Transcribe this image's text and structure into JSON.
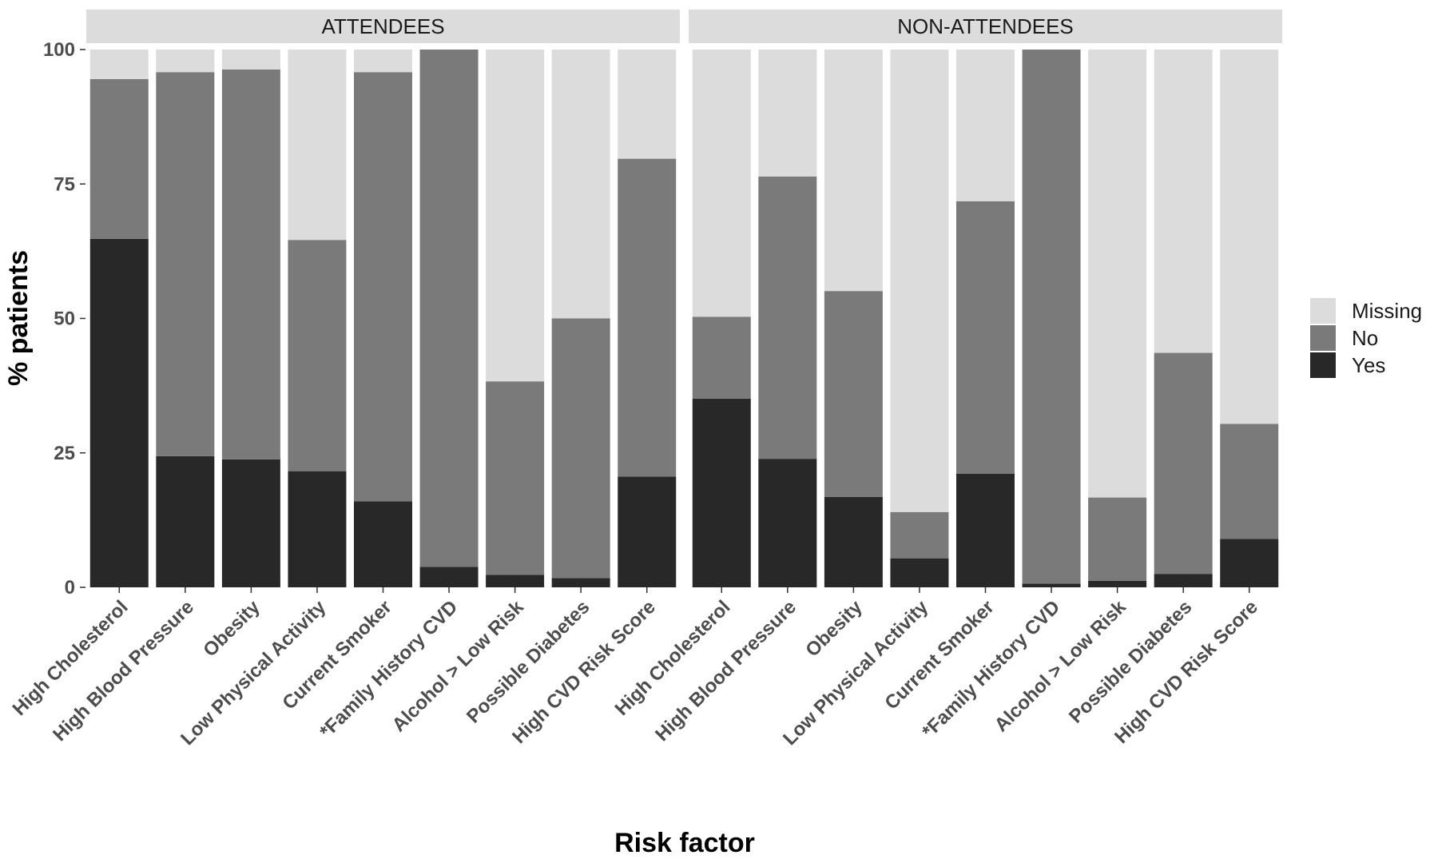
{
  "chart_data": {
    "type": "bar",
    "stacked": true,
    "xlabel": "Risk factor",
    "ylabel": "% patients",
    "ylim": [
      0,
      100
    ],
    "yticks": [
      0,
      25,
      50,
      75,
      100
    ],
    "categories": [
      "High Cholesterol",
      "High Blood Pressure",
      "Obesity",
      "Low Physical Activity",
      "Current Smoker",
      "*Family History CVD",
      "Alcohol > Low Risk",
      "Possible Diabetes",
      "High CVD Risk Score"
    ],
    "legend": {
      "position": "right",
      "entries": [
        "Missing",
        "No",
        "Yes"
      ]
    },
    "colors": {
      "Yes": "#282828",
      "No": "#7a7a7a",
      "Missing": "#dcdcdc",
      "strip": "#dcdcdc"
    },
    "panels": [
      {
        "name": "ATTENDEES",
        "series": [
          {
            "name": "Yes",
            "values": [
              64.8,
              24.4,
              23.8,
              21.6,
              16.0,
              3.8,
              2.3,
              1.7,
              20.6
            ]
          },
          {
            "name": "No",
            "values": [
              29.7,
              71.4,
              72.5,
              43.0,
              79.8,
              96.2,
              36.0,
              48.3,
              59.1
            ]
          },
          {
            "name": "Missing",
            "values": [
              5.5,
              4.2,
              3.7,
              35.4,
              4.2,
              0.0,
              61.7,
              50.0,
              20.3
            ]
          }
        ]
      },
      {
        "name": "NON-ATTENDEES",
        "series": [
          {
            "name": "Yes",
            "values": [
              35.1,
              23.9,
              16.8,
              5.4,
              21.1,
              0.7,
              1.2,
              2.5,
              9.0
            ]
          },
          {
            "name": "No",
            "values": [
              15.2,
              52.5,
              38.3,
              8.6,
              50.7,
              99.3,
              15.5,
              41.1,
              21.4
            ]
          },
          {
            "name": "Missing",
            "values": [
              49.7,
              23.6,
              44.9,
              86.0,
              28.2,
              0.0,
              83.3,
              56.4,
              69.6
            ]
          }
        ]
      }
    ]
  }
}
